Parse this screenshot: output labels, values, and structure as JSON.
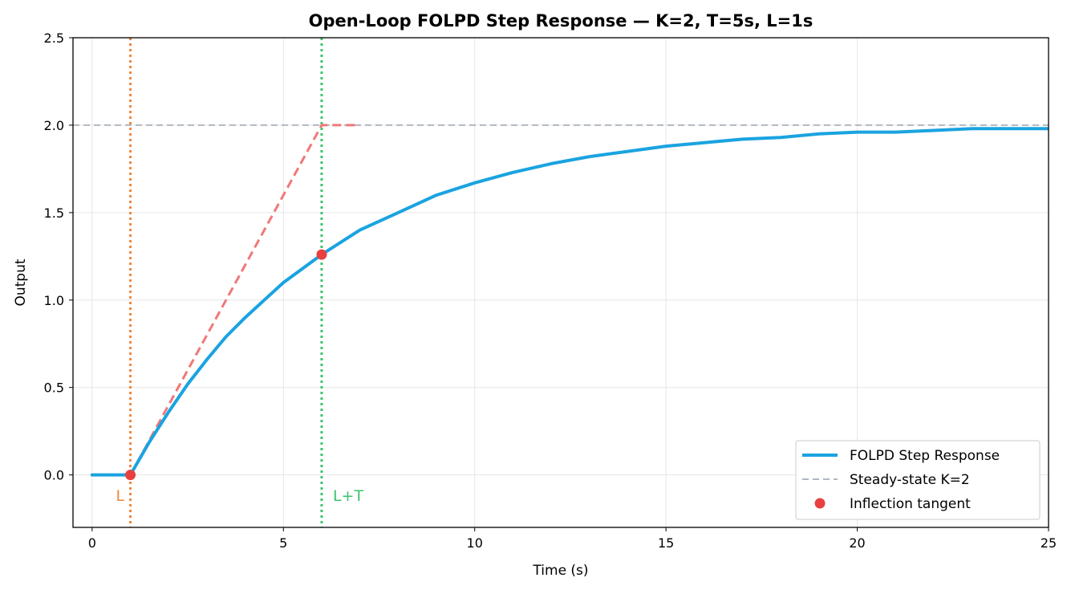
{
  "chart_data": {
    "type": "line",
    "title": "Open-Loop FOLPD Step Response  —  K=2, T=5s, L=1s",
    "xlabel": "Time (s)",
    "ylabel": "Output",
    "xlim": [
      -0.5,
      25
    ],
    "ylim": [
      -0.3,
      2.5
    ],
    "xticks": [
      0,
      5,
      10,
      15,
      20,
      25
    ],
    "xtick_labels": [
      "0",
      "5",
      "10",
      "15",
      "20",
      "25"
    ],
    "yticks": [
      0.0,
      0.5,
      1.0,
      1.5,
      2.0,
      2.5
    ],
    "ytick_labels": [
      "0.0",
      "0.5",
      "1.0",
      "1.5",
      "2.0",
      "2.5"
    ],
    "grid": true,
    "legend_position": "bottom-right",
    "series": [
      {
        "name": "FOLPD Step Response",
        "style": "solid",
        "color": "#1aa3e0",
        "x": [
          0,
          1,
          1.5,
          2,
          2.5,
          3,
          3.5,
          4,
          4.5,
          5,
          5.5,
          6,
          7,
          8,
          9,
          10,
          11,
          12,
          13,
          14,
          15,
          16,
          17,
          18,
          19,
          20,
          21,
          22,
          23,
          24,
          25
        ],
        "y": [
          0,
          0,
          0.19,
          0.36,
          0.52,
          0.66,
          0.79,
          0.9,
          1.0,
          1.1,
          1.18,
          1.26,
          1.4,
          1.5,
          1.6,
          1.67,
          1.73,
          1.78,
          1.82,
          1.85,
          1.88,
          1.9,
          1.92,
          1.93,
          1.95,
          1.96,
          1.96,
          1.97,
          1.98,
          1.98,
          1.98
        ]
      },
      {
        "name": "Steady-state K=2",
        "style": "dashed",
        "color": "#b0b8c1",
        "x": [
          -0.5,
          25
        ],
        "y": [
          2.0,
          2.0
        ]
      },
      {
        "name": "Inflection tangent",
        "style": "markers",
        "color": "#e84040",
        "x": [
          1,
          6
        ],
        "y": [
          0.0,
          1.26
        ]
      }
    ],
    "tangent_line": {
      "color": "#f07878",
      "x": [
        1,
        6,
        7
      ],
      "y": [
        0.0,
        2.0,
        2.0
      ]
    },
    "vertical_lines": [
      {
        "x": 1,
        "color": "#f0883e",
        "style": "dotted",
        "label": "L",
        "label_color": "#f0883e"
      },
      {
        "x": 6,
        "color": "#3cc46e",
        "style": "dotted",
        "label": "L+T",
        "label_color": "#3cc46e"
      }
    ]
  }
}
